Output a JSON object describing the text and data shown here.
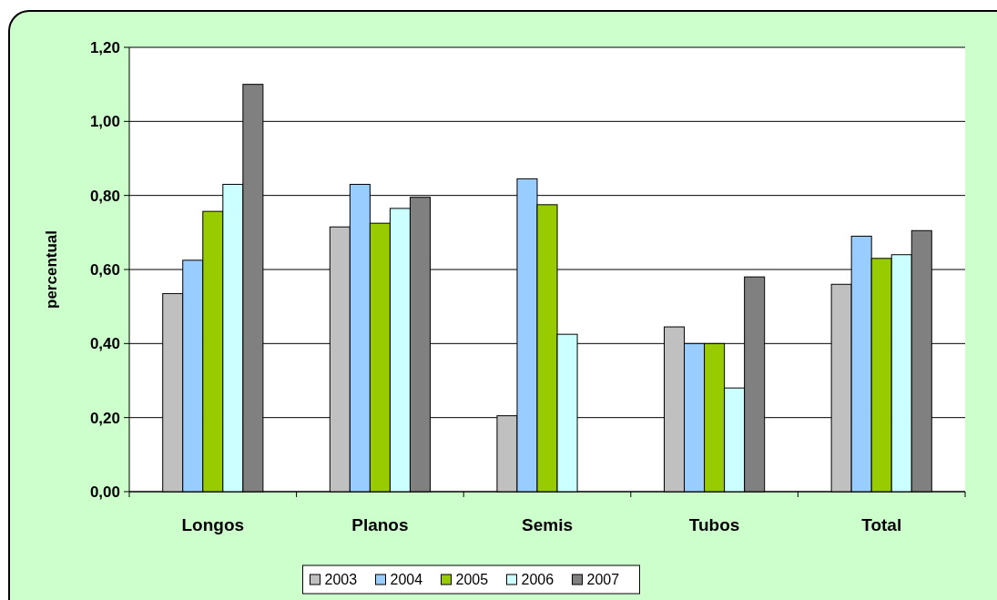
{
  "chart_data": {
    "type": "bar",
    "ylabel": "percentual",
    "categories": [
      "Longos",
      "Planos",
      "Semis",
      "Tubos",
      "Total"
    ],
    "series": [
      {
        "name": "2003",
        "color": "#c0c0c0",
        "values": [
          0.535,
          0.715,
          0.205,
          0.445,
          0.56
        ]
      },
      {
        "name": "2004",
        "color": "#99ccff",
        "values": [
          0.625,
          0.83,
          0.845,
          0.4,
          0.69
        ]
      },
      {
        "name": "2005",
        "color": "#99cc00",
        "values": [
          0.757,
          0.725,
          0.775,
          0.4,
          0.63
        ]
      },
      {
        "name": "2006",
        "color": "#ccffff",
        "values": [
          0.83,
          0.765,
          0.425,
          0.28,
          0.64
        ]
      },
      {
        "name": "2007",
        "color": "#808080",
        "values": [
          1.1,
          0.795,
          null,
          0.58,
          0.705
        ]
      }
    ],
    "ylim": [
      0,
      1.2
    ],
    "yticks": [
      {
        "value": 0,
        "label": "0,00"
      },
      {
        "value": 0.2,
        "label": "0,20"
      },
      {
        "value": 0.4,
        "label": "0,40"
      },
      {
        "value": 0.6,
        "label": "0,60"
      },
      {
        "value": 0.8,
        "label": "0,80"
      },
      {
        "value": 1,
        "label": "1,00"
      },
      {
        "value": 1.2,
        "label": "1,20"
      }
    ],
    "grid": "y",
    "legend": "bottom"
  }
}
